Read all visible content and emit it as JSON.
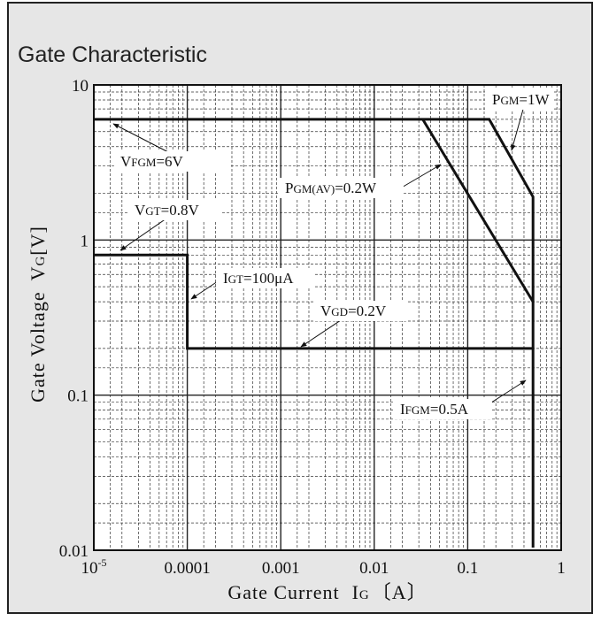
{
  "chart_data": {
    "type": "line",
    "title": "Gate Characteristic",
    "xlabel": "Gate Current",
    "xlabel_symbol": "I",
    "xlabel_subscript": "G",
    "xlabel_unit": "〔A〕",
    "ylabel": "Gate Voltage",
    "ylabel_symbol": "V",
    "ylabel_subscript": "G",
    "ylabel_unit": "[V]",
    "x_scale": "log",
    "y_scale": "log",
    "xlim": [
      1e-05,
      1
    ],
    "ylim": [
      0.01,
      10
    ],
    "grid": true,
    "x_ticks": [
      {
        "value": 1e-05,
        "base": "10",
        "exp": "-5"
      },
      {
        "value": 0.0001,
        "label": "0.0001"
      },
      {
        "value": 0.001,
        "label": "0.001"
      },
      {
        "value": 0.01,
        "label": "0.01"
      },
      {
        "value": 0.1,
        "label": "0.1"
      },
      {
        "value": 1,
        "label": "1"
      }
    ],
    "y_ticks": [
      {
        "value": 10,
        "label": "10"
      },
      {
        "value": 1,
        "label": "1"
      },
      {
        "value": 0.1,
        "label": "0.1"
      },
      {
        "value": 0.01,
        "label": "0.01"
      }
    ],
    "series": [
      {
        "x": [
          1e-05,
          0.17,
          0.5,
          0.5
        ],
        "y": [
          6,
          6,
          1.9,
          0.0104
        ]
      },
      {
        "x": [
          0.033,
          0.5
        ],
        "y": [
          6,
          0.4
        ]
      },
      {
        "x": [
          1e-05,
          0.0001,
          0.0001,
          0.5
        ],
        "y": [
          0.8,
          0.8,
          0.2,
          0.2
        ]
      }
    ],
    "annotations": [
      {
        "main": "P",
        "sub": "GM",
        "rest": "=1W"
      },
      {
        "main": "V",
        "sub": "FGM",
        "rest": "=6V"
      },
      {
        "main": "P",
        "sub": "GM(AV)",
        "rest": "=0.2W"
      },
      {
        "main": "V",
        "sub": "GT",
        "rest": "=0.8V"
      },
      {
        "main": "I",
        "sub": "GT",
        "rest": "=100μA"
      },
      {
        "main": "V",
        "sub": "GD",
        "rest": "=0.2V"
      },
      {
        "main": "I",
        "sub": "FGM",
        "rest": "=0.5A"
      }
    ]
  }
}
